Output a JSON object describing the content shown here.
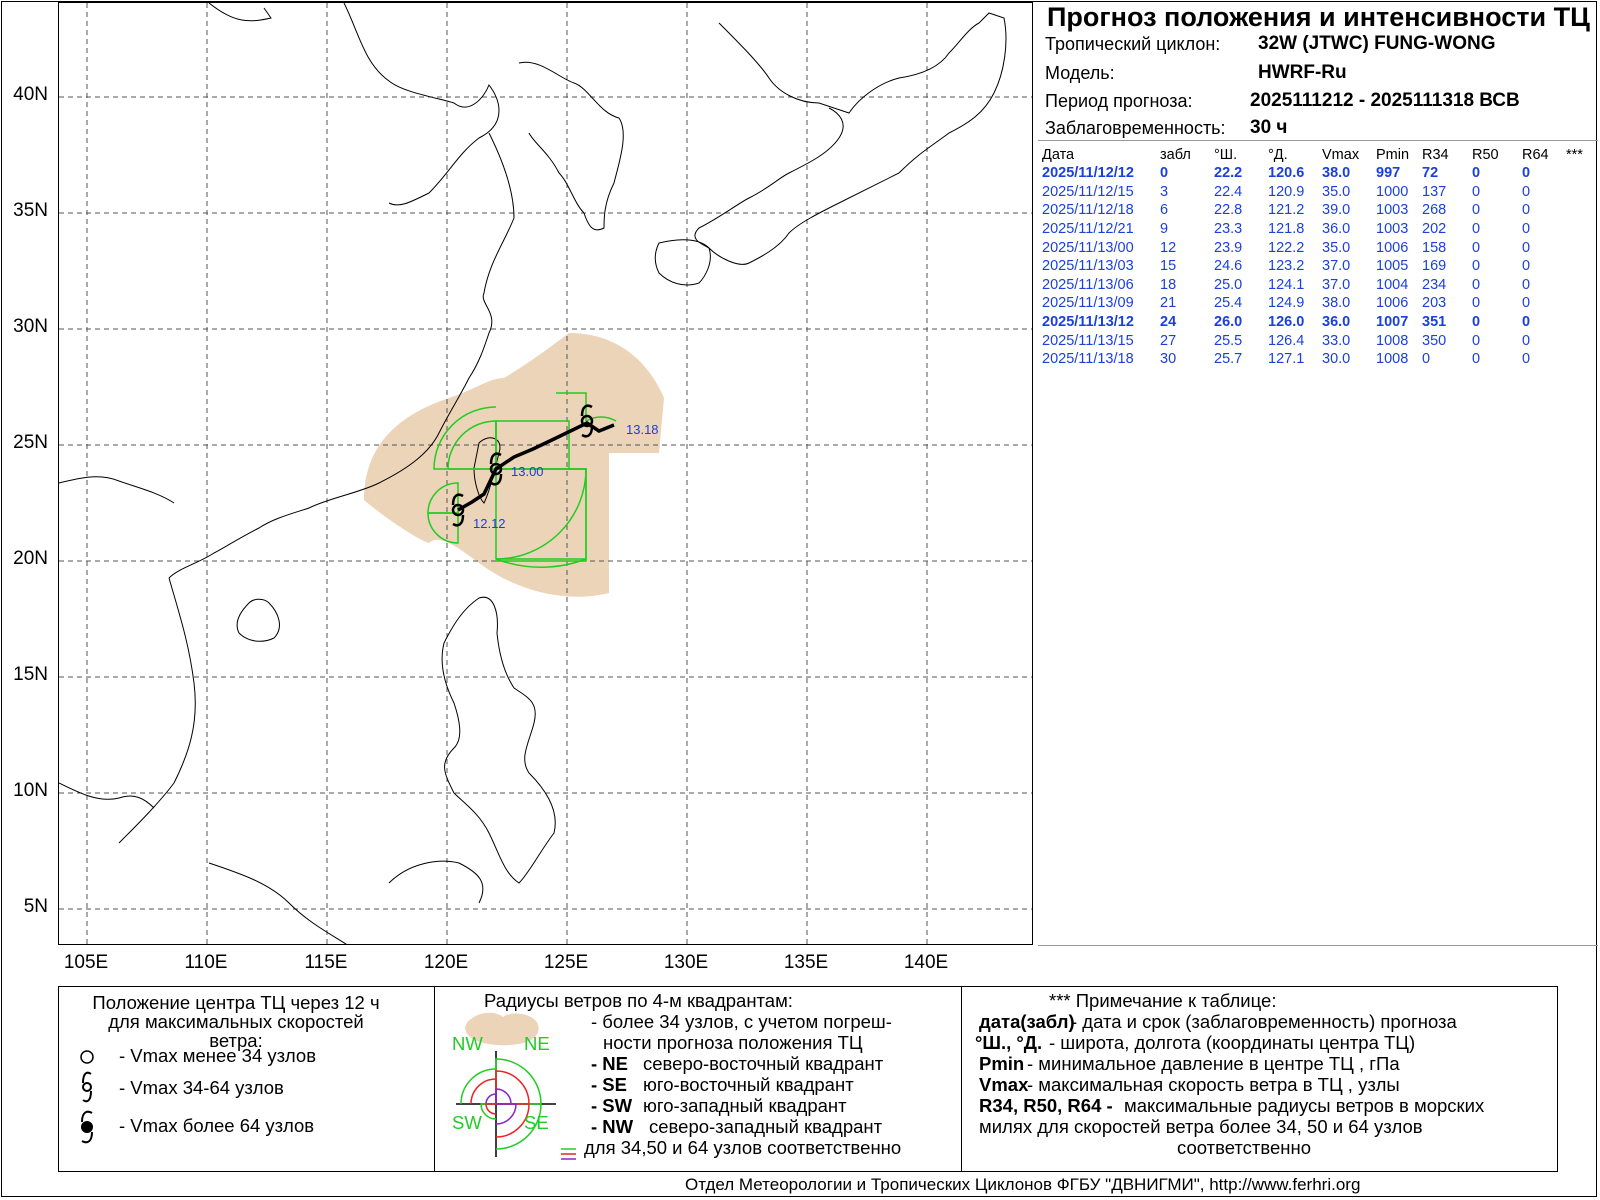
{
  "title": "Прогноз положения и интенсивности ТЦ",
  "meta": {
    "cyclone_label": "Тропический циклон:",
    "cyclone_value": "32W (JTWC)  FUNG-WONG",
    "model_label": "Модель:",
    "model_value": "HWRF-Ru",
    "period_label": "Период прогноза:",
    "period_value": "2025111212 - 2025111318 ВСВ",
    "lead_label": "Заблаговременность:",
    "lead_value": "30 ч"
  },
  "table": {
    "headers": [
      "Дата",
      "забл",
      "°Ш.",
      "°Д.",
      "Vmax",
      "Pmin",
      "R34",
      "R50",
      "R64",
      "***"
    ],
    "rows": [
      {
        "bold": true,
        "cells": [
          "2025/11/12/12",
          "0",
          "22.2",
          "120.6",
          "38.0",
          "997",
          "72",
          "0",
          "0"
        ]
      },
      {
        "bold": false,
        "cells": [
          "2025/11/12/15",
          "3",
          "22.4",
          "120.9",
          "35.0",
          "1000",
          "137",
          "0",
          "0"
        ]
      },
      {
        "bold": false,
        "cells": [
          "2025/11/12/18",
          "6",
          "22.8",
          "121.2",
          "39.0",
          "1003",
          "268",
          "0",
          "0"
        ]
      },
      {
        "bold": false,
        "cells": [
          "2025/11/12/21",
          "9",
          "23.3",
          "121.8",
          "36.0",
          "1003",
          "202",
          "0",
          "0"
        ]
      },
      {
        "bold": false,
        "cells": [
          "2025/11/13/00",
          "12",
          "23.9",
          "122.2",
          "35.0",
          "1006",
          "158",
          "0",
          "0"
        ]
      },
      {
        "bold": false,
        "cells": [
          "2025/11/13/03",
          "15",
          "24.6",
          "123.2",
          "37.0",
          "1005",
          "169",
          "0",
          "0"
        ]
      },
      {
        "bold": false,
        "cells": [
          "2025/11/13/06",
          "18",
          "25.0",
          "124.1",
          "37.0",
          "1004",
          "234",
          "0",
          "0"
        ]
      },
      {
        "bold": false,
        "cells": [
          "2025/11/13/09",
          "21",
          "25.4",
          "124.9",
          "38.0",
          "1006",
          "203",
          "0",
          "0"
        ]
      },
      {
        "bold": true,
        "cells": [
          "2025/11/13/12",
          "24",
          "26.0",
          "126.0",
          "36.0",
          "1007",
          "351",
          "0",
          "0"
        ]
      },
      {
        "bold": false,
        "cells": [
          "2025/11/13/15",
          "27",
          "25.5",
          "126.4",
          "33.0",
          "1008",
          "350",
          "0",
          "0"
        ]
      },
      {
        "bold": false,
        "cells": [
          "2025/11/13/18",
          "30",
          "25.7",
          "127.1",
          "30.0",
          "1008",
          "0",
          "0",
          "0"
        ]
      }
    ]
  },
  "map": {
    "lat_labels": [
      "40N",
      "35N",
      "30N",
      "25N",
      "20N",
      "15N",
      "10N",
      "5N"
    ],
    "lon_labels": [
      "105E",
      "110E",
      "115E",
      "120E",
      "125E",
      "130E",
      "135E",
      "140E"
    ],
    "track_labels": [
      "12.12",
      "13.00",
      "13.18"
    ],
    "colors": {
      "uncertainty": "#ecd4b8",
      "r34": "#22cc22",
      "track": "#000000",
      "labels": "#1a3fe0",
      "grid": "#555555"
    }
  },
  "legend": {
    "col1_title": "Положение центра ТЦ через 12 ч\nдля максимальных скоростей\nветра:",
    "col1_item1": "- Vmax  менее 34 узлов",
    "col1_item2": "- Vmax  34-64 узлов",
    "col1_item3": "- Vmax  более 64 узлов",
    "col2_title": "Радиусы ветров по 4-м квадрантам:",
    "col2_l1": "- более 34 узлов, с учетом погреш-",
    "col2_l2": "ности прогноза положения ТЦ",
    "col2_ne_code": "- NE",
    "col2_ne_text": "северо-восточный квадрант",
    "col2_se_code": "- SE",
    "col2_se_text": "юго-восточный квадрант",
    "col2_sw_code": "- SW",
    "col2_sw_text": "юго-западный квадрант",
    "col2_nw_code": "- NW",
    "col2_nw_text": "северо-западный квадрант",
    "col2_last": "для 34,50 и 64 узлов соответственно",
    "quad_nw": "NW",
    "quad_ne": "NE",
    "quad_sw": "SW",
    "quad_se": "SE",
    "col3_title": "*** Примечание к таблице:",
    "col3_r1_code": "дата(забл)",
    "col3_r1_text": " - дата и срок (заблаговременность) прогноза",
    "col3_r2_code": "°Ш., °Д.",
    "col3_r2_text": " - широта, долгота   (координаты центра ТЦ)",
    "col3_r3_code": "Pmin",
    "col3_r3_text": "   - минимальное давление в центре ТЦ , гПа",
    "col3_r4_code": "Vmax",
    "col3_r4_text": "   -  максимальная скорость ветра в ТЦ , узлы",
    "col3_r5_code": "R34, R50, R64 -",
    "col3_r5_text": " максимальные радиусы ветров в морских",
    "col3_r6": "милях для скоростей ветра более 34, 50 и 64 узлов",
    "col3_r7": "соответственно"
  },
  "footer": "Отдел Метеорологии и Тропических Циклонов ФГБУ \"ДВНИГМИ\",  http://www.ferhri.org"
}
